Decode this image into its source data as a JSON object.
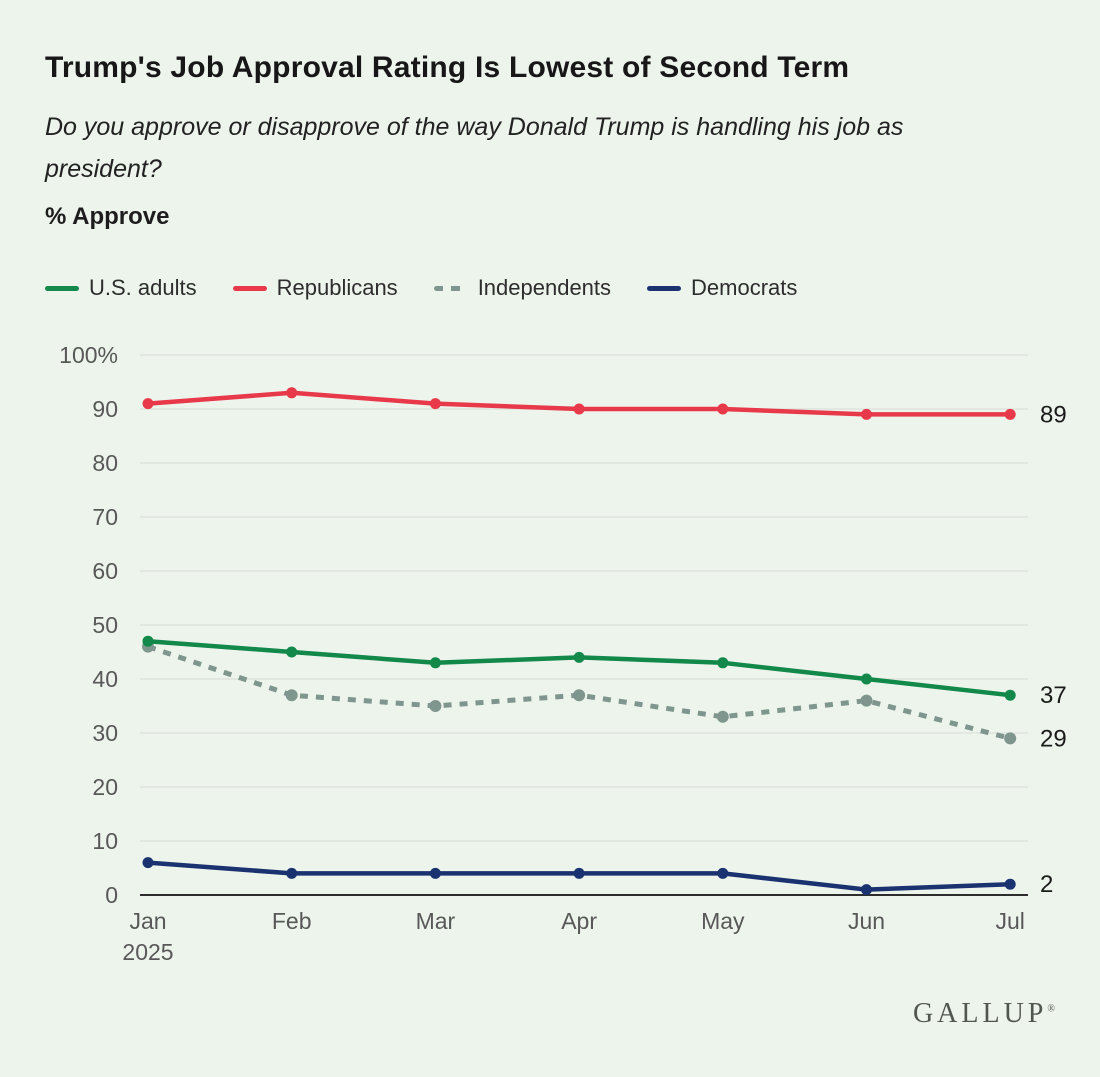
{
  "page": {
    "background": "#edf4ec",
    "title": "Trump's Job Approval Rating Is Lowest of Second Term",
    "subtitle": "Do you approve or disapprove of the way Donald Trump is handling his job as\npresident?",
    "measure_label": "% Approve",
    "brand": "GALLUP",
    "brand_mark": "®"
  },
  "chart_data": {
    "type": "line",
    "x": [
      "Jan 2025",
      "Feb",
      "Mar",
      "Apr",
      "May",
      "Jun",
      "Jul"
    ],
    "x_tick_labels": [
      [
        "Jan",
        "2025"
      ],
      [
        "Feb"
      ],
      [
        "Mar"
      ],
      [
        "Apr"
      ],
      [
        "May"
      ],
      [
        "Jun"
      ],
      [
        "Jul"
      ]
    ],
    "series": [
      {
        "name": "U.S. adults",
        "color": "#12884a",
        "style": "solid",
        "values": [
          47,
          45,
          43,
          44,
          43,
          40,
          37
        ],
        "end_label": "37"
      },
      {
        "name": "Republicans",
        "color": "#e8394a",
        "style": "solid",
        "values": [
          91,
          93,
          91,
          90,
          90,
          89,
          89
        ],
        "end_label": "89"
      },
      {
        "name": "Independents",
        "color": "#7f968e",
        "style": "dashed",
        "values": [
          46,
          37,
          35,
          37,
          33,
          36,
          29
        ],
        "end_label": "29"
      },
      {
        "name": "Democrats",
        "color": "#1a3270",
        "style": "solid",
        "values": [
          6,
          4,
          4,
          4,
          4,
          1,
          2
        ],
        "end_label": "2"
      }
    ],
    "y_ticks": [
      0,
      10,
      20,
      30,
      40,
      50,
      60,
      70,
      80,
      90,
      100
    ],
    "y_tick_labels": [
      "0",
      "10",
      "20",
      "30",
      "40",
      "50",
      "60",
      "70",
      "80",
      "90",
      "100%"
    ],
    "ylim": [
      0,
      100
    ],
    "grid": true,
    "legend_position": "top",
    "colors": {
      "grid_line": "#dee4dd",
      "zero_line": "#2d2d2d",
      "tick_text": "#585858",
      "end_label_text": "#1b1b1b"
    }
  }
}
